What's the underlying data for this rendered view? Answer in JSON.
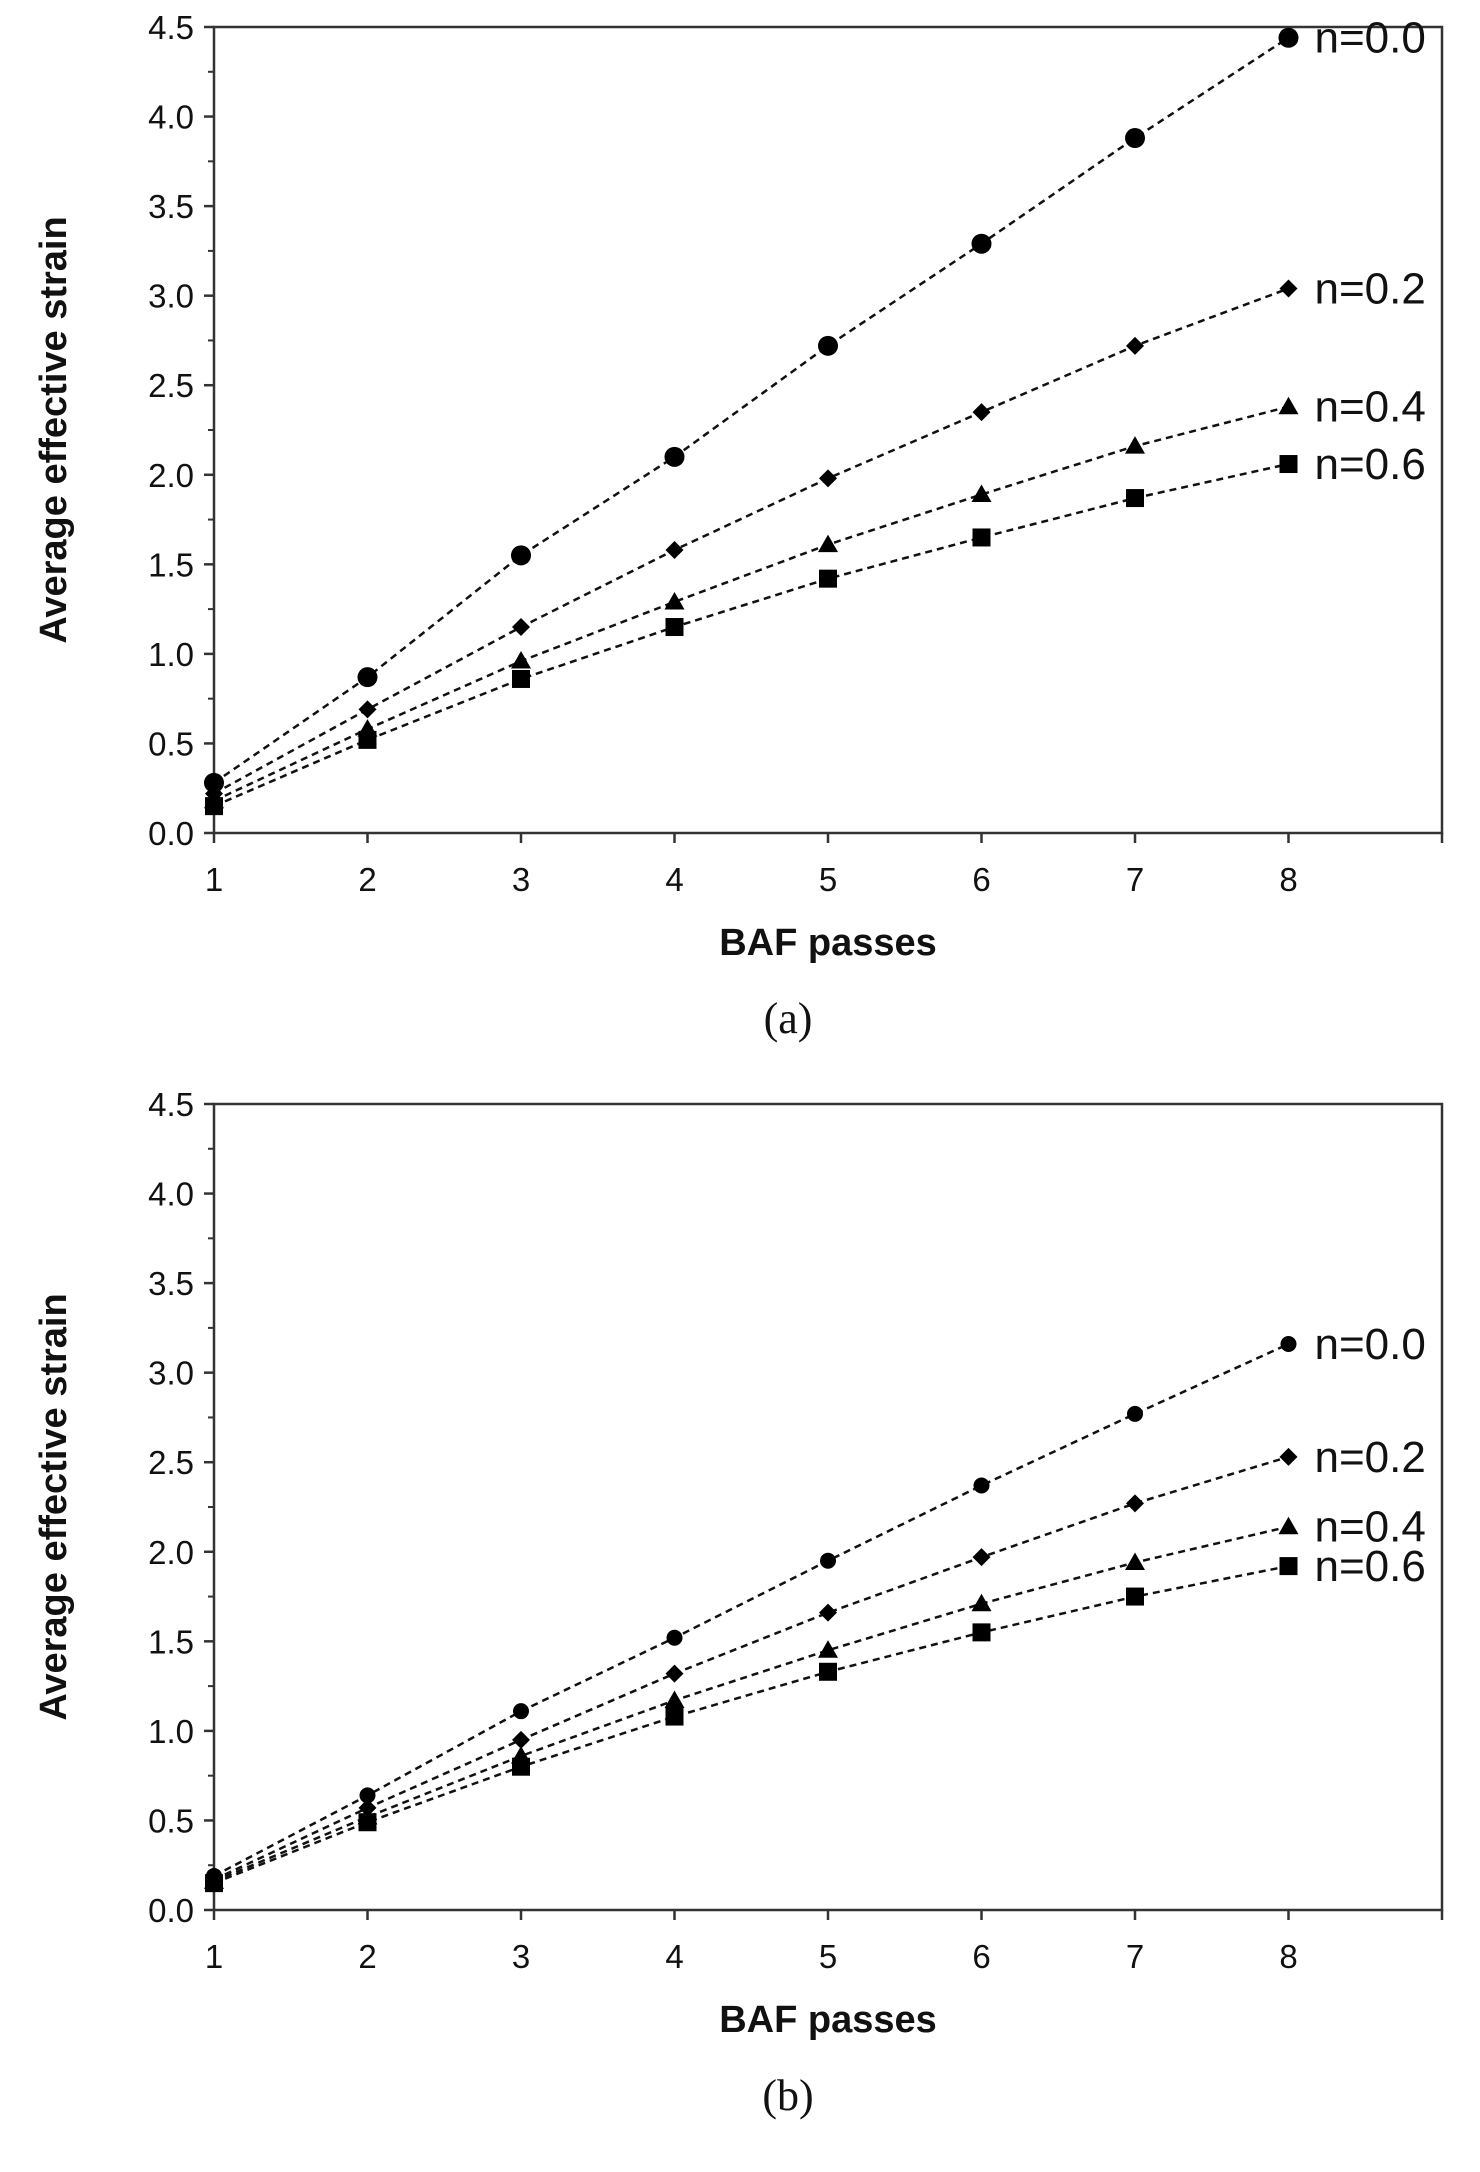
{
  "chart_data": [
    {
      "type": "line",
      "panel_label": "(a)",
      "xlabel": "BAF passes",
      "ylabel": "Average effective strain",
      "x": [
        1,
        2,
        3,
        4,
        5,
        6,
        7,
        8
      ],
      "xlim": [
        1,
        9
      ],
      "ylim": [
        0,
        4.5
      ],
      "xticks": [
        "1",
        "2",
        "3",
        "4",
        "5",
        "6",
        "7",
        "8"
      ],
      "yticks": [
        "0.0",
        "0.5",
        "1.0",
        "1.5",
        "2.0",
        "2.5",
        "3.0",
        "3.5",
        "4.0",
        "4.5"
      ],
      "grid": false,
      "line_style": "dashed",
      "series": [
        {
          "name": "n=0.0",
          "marker": "circle",
          "values": [
            0.28,
            0.87,
            1.55,
            2.1,
            2.72,
            3.29,
            3.88,
            4.44
          ]
        },
        {
          "name": "n=0.2",
          "marker": "diamond",
          "values": [
            0.22,
            0.69,
            1.15,
            1.58,
            1.98,
            2.35,
            2.72,
            3.04
          ]
        },
        {
          "name": "n=0.4",
          "marker": "triangle",
          "values": [
            0.18,
            0.58,
            0.96,
            1.29,
            1.61,
            1.89,
            2.16,
            2.38
          ]
        },
        {
          "name": "n=0.6",
          "marker": "square",
          "values": [
            0.15,
            0.52,
            0.86,
            1.15,
            1.42,
            1.65,
            1.87,
            2.06
          ]
        }
      ]
    },
    {
      "type": "line",
      "panel_label": "(b)",
      "xlabel": "BAF passes",
      "ylabel": "Average effective strain",
      "x": [
        1,
        2,
        3,
        4,
        5,
        6,
        7,
        8
      ],
      "xlim": [
        1,
        9
      ],
      "ylim": [
        0,
        4.5
      ],
      "xticks": [
        "1",
        "2",
        "3",
        "4",
        "5",
        "6",
        "7",
        "8"
      ],
      "yticks": [
        "0.0",
        "0.5",
        "1.0",
        "1.5",
        "2.0",
        "2.5",
        "3.0",
        "3.5",
        "4.0",
        "4.5"
      ],
      "grid": false,
      "line_style": "dashed",
      "series": [
        {
          "name": "n=0.0",
          "marker": "circle",
          "values": [
            0.19,
            0.64,
            1.11,
            1.52,
            1.95,
            2.37,
            2.77,
            3.16
          ]
        },
        {
          "name": "n=0.2",
          "marker": "diamond",
          "values": [
            0.17,
            0.57,
            0.95,
            1.32,
            1.66,
            1.97,
            2.27,
            2.53
          ]
        },
        {
          "name": "n=0.4",
          "marker": "triangle",
          "values": [
            0.16,
            0.52,
            0.86,
            1.17,
            1.45,
            1.71,
            1.94,
            2.14
          ]
        },
        {
          "name": "n=0.6",
          "marker": "square",
          "values": [
            0.15,
            0.49,
            0.8,
            1.08,
            1.33,
            1.55,
            1.75,
            1.92
          ]
        }
      ]
    }
  ]
}
